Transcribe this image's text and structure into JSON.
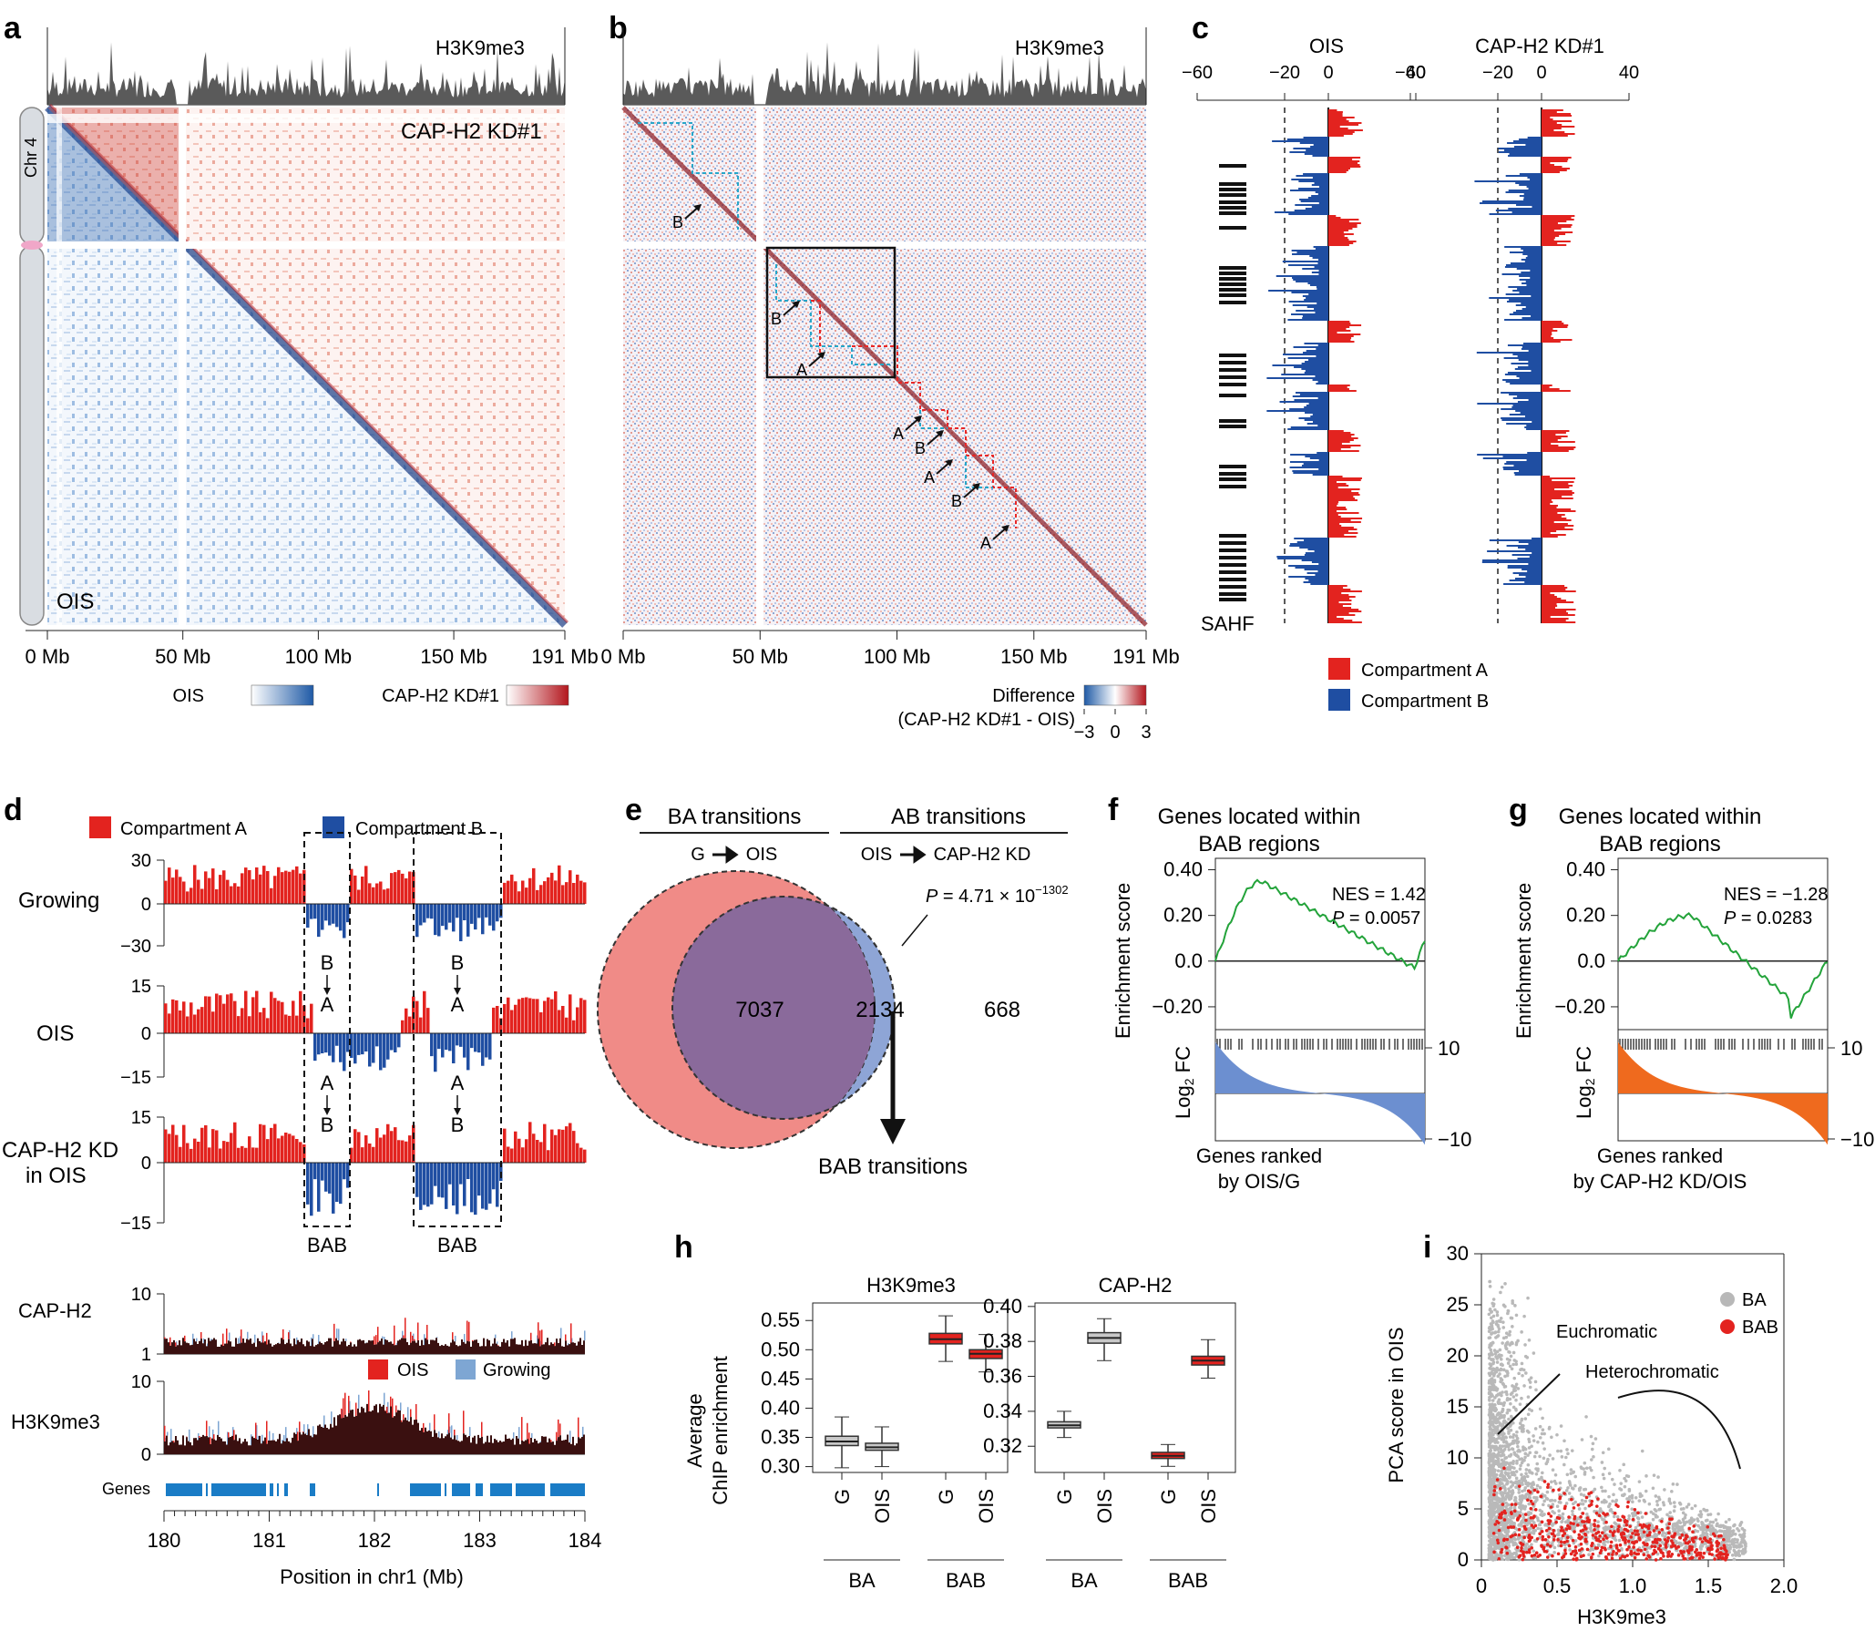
{
  "panel_a": {
    "label": "a",
    "track": "H3K9me3",
    "upper": "CAP-H2 KD#1",
    "lower": "OIS",
    "chrom": "Chr 4",
    "ticks": [
      "0 Mb",
      "50 Mb",
      "100 Mb",
      "150 Mb",
      "191 Mb"
    ],
    "legend_ois": "OIS",
    "legend_kd": "CAP-H2 KD#1"
  },
  "panel_b": {
    "label": "b",
    "track": "H3K9me3",
    "ticks": [
      "0 Mb",
      "50 Mb",
      "100 Mb",
      "150 Mb",
      "191 Mb"
    ],
    "legend_title1": "Difference",
    "legend_title2": "(CAP-H2 KD#1 - OIS)",
    "legend_ticks": [
      "−3",
      "0",
      "3"
    ],
    "markers": [
      "B",
      "B",
      "A",
      "A",
      "B",
      "A",
      "B",
      "A"
    ]
  },
  "panel_c": {
    "label": "c",
    "ois": "OIS",
    "kd": "CAP-H2 KD#1",
    "ticks": [
      "−60",
      "−20",
      "0",
      "40"
    ],
    "sahf": "SAHF",
    "legend_a": "Compartment A",
    "legend_b": "Compartment B"
  },
  "panel_d": {
    "label": "d",
    "legend_a": "Compartment A",
    "legend_b": "Compartment B",
    "tracks": [
      "Growing",
      "OIS",
      "CAP-H2 KD",
      "in OIS"
    ],
    "growing_ticks": [
      "30",
      "0",
      "−30"
    ],
    "ois_ticks": [
      "15",
      "0",
      "−15"
    ],
    "kd_ticks": [
      "15",
      "0",
      "−15"
    ],
    "ba": [
      "B",
      "A"
    ],
    "ab": [
      "A",
      "B"
    ],
    "bab": "BAB",
    "caph2": "CAP-H2",
    "h3k9": "H3K9me3",
    "chip_ticks": [
      "10",
      "1"
    ],
    "h3_ticks": [
      "10",
      "0"
    ],
    "legend_ois": "OIS",
    "legend_growing": "Growing",
    "genes": "Genes",
    "x_ticks": [
      "180",
      "181",
      "182",
      "183",
      "184"
    ],
    "xlabel": "Position in chr1 (Mb)"
  },
  "panel_e": {
    "label": "e",
    "ba": "BA transitions",
    "ab": "AB transitions",
    "ba_sub_g": "G",
    "ba_sub_o": "OIS",
    "ab_sub_o": "OIS",
    "ab_sub_k": "CAP-H2 KD",
    "left": "7037",
    "mid": "2134",
    "right": "668",
    "p_pre": "P",
    "p_val": " = 4.71 × 10",
    "p_exp": "−1302",
    "bab": "BAB transitions"
  },
  "panel_f": {
    "label": "f",
    "title1": "Genes located within",
    "title2": "BAB regions",
    "nes": "NES = 1.42",
    "p_pre": "P",
    "p": " = 0.0057",
    "ylabel": "Enrichment score",
    "yticks": [
      "0.40",
      "0.20",
      "0.0",
      "−0.20"
    ],
    "fc": "Log",
    "fc2": " FC",
    "fc_ticks": [
      "10",
      "−10"
    ],
    "xlabel1": "Genes ranked",
    "xlabel2": "by OIS/G"
  },
  "panel_g": {
    "label": "g",
    "title1": "Genes located within",
    "title2": "BAB regions",
    "nes": "NES = −1.28",
    "p_pre": "P",
    "p": " = 0.0283",
    "ylabel": "Enrichment score",
    "yticks": [
      "0.40",
      "0.20",
      "0.0",
      "−0.20"
    ],
    "fc": "Log",
    "fc2": " FC",
    "fc_ticks": [
      "10",
      "−10"
    ],
    "xlabel1": "Genes ranked",
    "xlabel2": "by CAP-H2 KD/OIS"
  },
  "panel_h": {
    "label": "h",
    "ylabel1": "Average",
    "ylabel2": "ChIP enrichment",
    "h3_title": "H3K9me3",
    "cap_title": "CAP-H2",
    "h3_ticks": [
      "0.55",
      "0.50",
      "0.45",
      "0.40",
      "0.35",
      "0.30"
    ],
    "cap_ticks": [
      "0.40",
      "0.38",
      "0.36",
      "0.34",
      "0.32"
    ],
    "x": [
      "G",
      "OIS",
      "G",
      "OIS"
    ],
    "groups": [
      "BA",
      "BAB"
    ]
  },
  "panel_i": {
    "label": "i",
    "xlabel": "H3K9me3",
    "ylabel": "PCA score in OIS",
    "xticks": [
      "0",
      "0.5",
      "1.0",
      "1.5",
      "2.0"
    ],
    "yticks": [
      "0",
      "5",
      "10",
      "15",
      "20",
      "25",
      "30"
    ],
    "legend_ba": "BA",
    "legend_bab": "BAB",
    "euchromatic": "Euchromatic",
    "heterochromatic": "Heterochromatic"
  },
  "colors": {
    "compA": "#e3231f",
    "compB": "#1f4ea2",
    "track_gray": "#555555",
    "gsea_green": "#23a33a",
    "fc_blue": "#6c8fd0",
    "fc_orange": "#ef6a1e",
    "venn_left": "#f08b87",
    "venn_mid": "#8a6a9b",
    "venn_right": "#8ea5d6"
  }
}
